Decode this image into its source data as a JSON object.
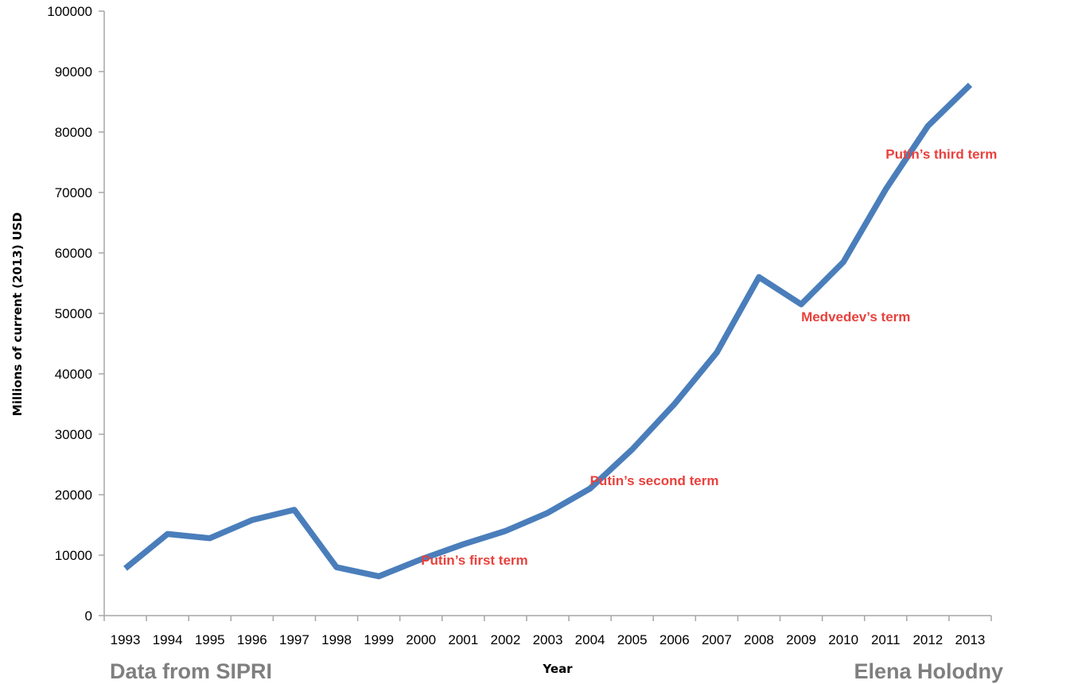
{
  "chart_data": {
    "type": "line",
    "title": "",
    "xlabel": "Year",
    "ylabel": "Millions of current (2013) USD",
    "x": [
      "1993",
      "1994",
      "1995",
      "1996",
      "1997",
      "1998",
      "1999",
      "2000",
      "2001",
      "2002",
      "2003",
      "2004",
      "2005",
      "2006",
      "2007",
      "2008",
      "2009",
      "2010",
      "2011",
      "2012",
      "2013"
    ],
    "series": [
      {
        "values": [
          7800,
          13500,
          12800,
          15800,
          17500,
          8000,
          6500,
          9300,
          11800,
          14000,
          17000,
          21000,
          27500,
          35000,
          43500,
          56000,
          51500,
          58500,
          70500,
          81000,
          87800
        ],
        "color": "#4a7ebb"
      }
    ],
    "ylim": [
      0,
      100000
    ],
    "yticks": [
      0,
      10000,
      20000,
      30000,
      40000,
      50000,
      60000,
      70000,
      80000,
      90000,
      100000
    ],
    "grid": false,
    "legend": "none",
    "annotations": [
      {
        "text": "Putin’s first term",
        "x": "2000",
        "y": 8400,
        "color": "#e8413c"
      },
      {
        "text": "Putin’s second term",
        "x": "2004",
        "y": 21600,
        "color": "#e8413c"
      },
      {
        "text": "Medvedev’s term",
        "x": "2009",
        "y": 48700,
        "color": "#e8413c"
      },
      {
        "text": "Putin’s third term",
        "x": "2011",
        "y": 75600,
        "color": "#e8413c"
      }
    ]
  },
  "footer": {
    "source": "Data from SIPRI",
    "author": "Elena Holodny"
  }
}
